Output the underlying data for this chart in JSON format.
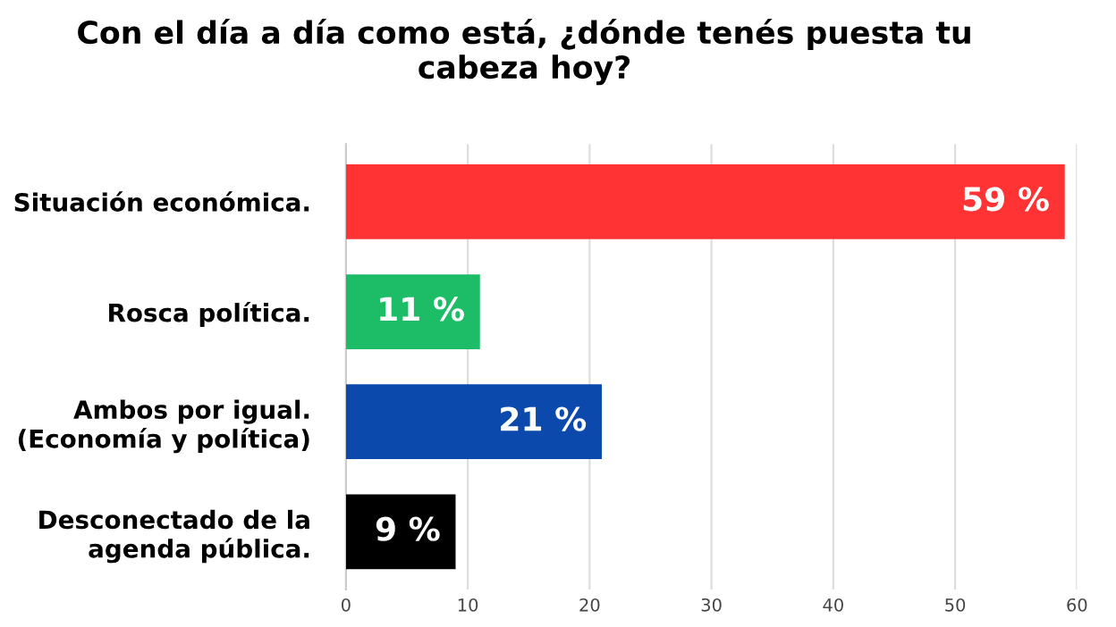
{
  "chart_data": {
    "type": "bar",
    "orientation": "horizontal",
    "title": "Con el día a día como está, ¿dónde tenés puesta tu\ncabeza hoy?",
    "categories": [
      "Situación económica.",
      "Rosca política.",
      "Ambos por igual.\n(Economía y política)",
      "Desconectado de la\nagenda pública."
    ],
    "values": [
      59,
      11,
      21,
      9
    ],
    "colors": [
      "#ff3333",
      "#1dbd68",
      "#0b49ad",
      "#000000"
    ],
    "value_labels": [
      "59 %",
      "11 %",
      "21 %",
      "9 %"
    ],
    "xlim": [
      0,
      60
    ],
    "xticks": [
      0,
      10,
      20,
      30,
      40,
      50,
      60
    ],
    "grid": "x",
    "legend": false
  }
}
